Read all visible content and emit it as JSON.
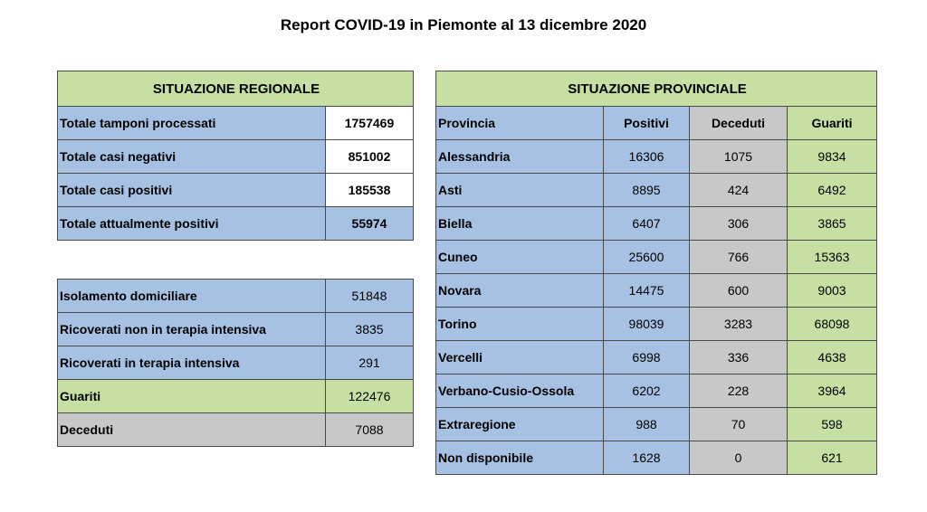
{
  "title": "Report COVID-19 in Piemonte al 13 dicembre 2020",
  "regional": {
    "heading": "SITUAZIONE REGIONALE",
    "rows": [
      {
        "label": "Totale tamponi processati",
        "value": "1757469"
      },
      {
        "label": "Totale casi negativi",
        "value": "851002"
      },
      {
        "label": "Totale casi positivi",
        "value": "185538"
      },
      {
        "label": "Totale attualmente positivi",
        "value": "55974"
      }
    ]
  },
  "breakdown": {
    "rows": [
      {
        "label": "Isolamento domiciliare",
        "value": "51848"
      },
      {
        "label": "Ricoverati non in terapia intensiva",
        "value": "3835"
      },
      {
        "label": "Ricoverati in terapia intensiva",
        "value": "291"
      },
      {
        "label": "Guariti",
        "value": "122476"
      },
      {
        "label": "Deceduti",
        "value": "7088"
      }
    ]
  },
  "provincial": {
    "heading": "SITUAZIONE PROVINCIALE",
    "columns": [
      "Provincia",
      "Positivi",
      "Deceduti",
      "Guariti"
    ],
    "rows": [
      {
        "name": "Alessandria",
        "positivi": "16306",
        "deceduti": "1075",
        "guariti": "9834"
      },
      {
        "name": "Asti",
        "positivi": "8895",
        "deceduti": "424",
        "guariti": "6492"
      },
      {
        "name": "Biella",
        "positivi": "6407",
        "deceduti": "306",
        "guariti": "3865"
      },
      {
        "name": "Cuneo",
        "positivi": "25600",
        "deceduti": "766",
        "guariti": "15363"
      },
      {
        "name": "Novara",
        "positivi": "14475",
        "deceduti": "600",
        "guariti": "9003"
      },
      {
        "name": "Torino",
        "positivi": "98039",
        "deceduti": "3283",
        "guariti": "68098"
      },
      {
        "name": "Vercelli",
        "positivi": "6998",
        "deceduti": "336",
        "guariti": "4638"
      },
      {
        "name": "Verbano-Cusio-Ossola",
        "positivi": "6202",
        "deceduti": "228",
        "guariti": "3964"
      },
      {
        "name": "Extraregione",
        "positivi": "988",
        "deceduti": "70",
        "guariti": "598"
      },
      {
        "name": "Non disponibile",
        "positivi": "1628",
        "deceduti": "0",
        "guariti": "621"
      }
    ]
  }
}
